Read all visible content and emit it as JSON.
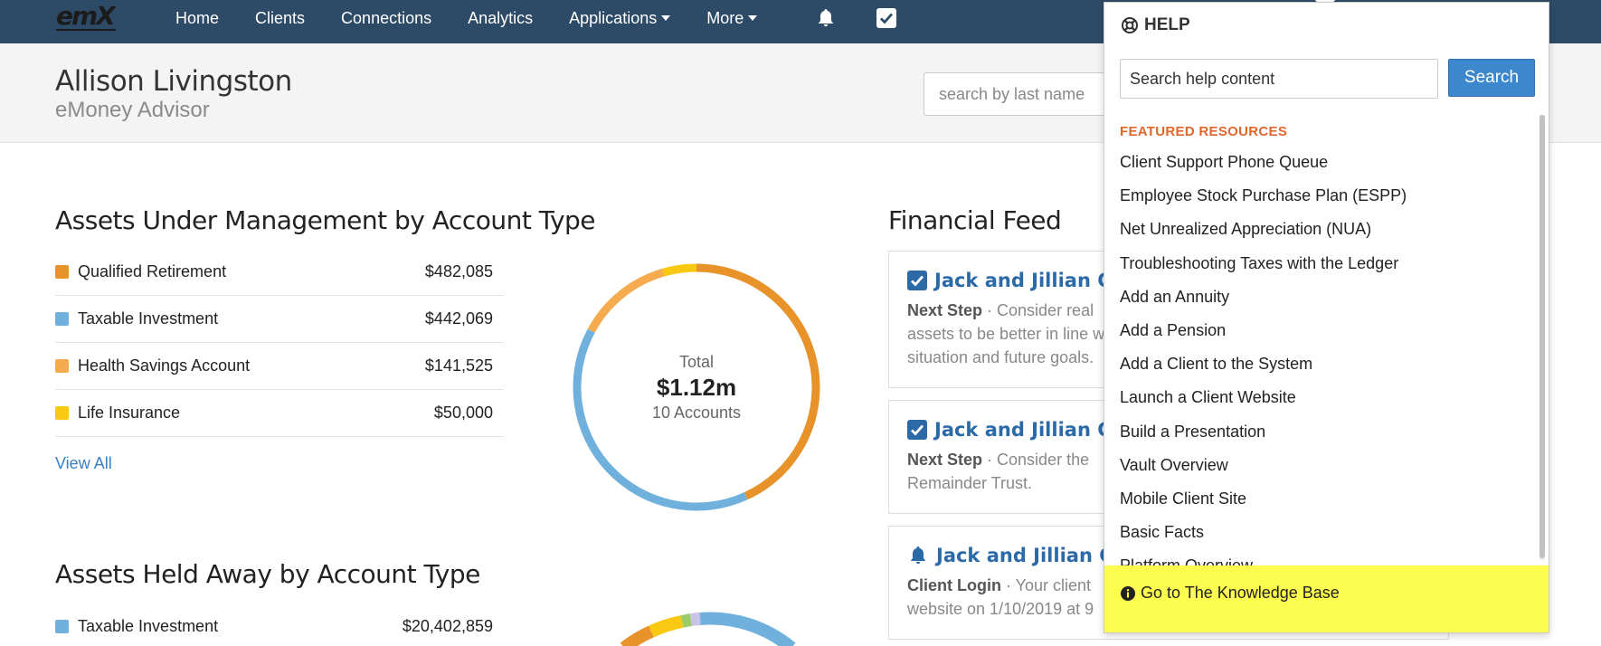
{
  "nav": {
    "logo_text": "emX",
    "links": [
      {
        "label": "Home"
      },
      {
        "label": "Clients"
      },
      {
        "label": "Connections"
      },
      {
        "label": "Analytics"
      },
      {
        "label": "Applications",
        "dropdown": true
      },
      {
        "label": "More",
        "dropdown": true
      }
    ],
    "icons": [
      "bell-icon",
      "checkbox-icon"
    ],
    "bg_color": "#2d4a66"
  },
  "header": {
    "user_name": "Allison Livingston",
    "company": "eMoney Advisor",
    "search_placeholder": "search by last name"
  },
  "aum": {
    "title": "Assets Under Management by Account Type",
    "rows": [
      {
        "name": "Qualified Retirement",
        "value": "$482,085",
        "color": "#e8922a"
      },
      {
        "name": "Taxable Investment",
        "value": "$442,069",
        "color": "#6fb0dc"
      },
      {
        "name": "Health Savings Account",
        "value": "$141,525",
        "color": "#f6ab4f"
      },
      {
        "name": "Life Insurance",
        "value": "$50,000",
        "color": "#f9c912"
      }
    ],
    "view_all": "View All",
    "donut": {
      "label": "Total",
      "total": "$1.12m",
      "accounts": "10 Accounts",
      "slices": [
        {
          "value": 482085,
          "color": "#e8922a"
        },
        {
          "value": 442069,
          "color": "#6fb0dc"
        },
        {
          "value": 141525,
          "color": "#f6ab4f"
        },
        {
          "value": 50000,
          "color": "#f9c912"
        }
      ]
    }
  },
  "held_away": {
    "title": "Assets Held Away by Account Type",
    "rows": [
      {
        "name": "Taxable Investment",
        "value": "$20,402,859",
        "color": "#6fb0dc"
      }
    ]
  },
  "feed": {
    "title": "Financial Feed",
    "cards": [
      {
        "icon": "checkbox-icon",
        "heading": "Jack and Jillian Clie",
        "label": "Next Step",
        "sep": " · ",
        "text": "Consider real",
        "text2": "assets to be better in line w",
        "text3": "situation and future goals."
      },
      {
        "icon": "checkbox-icon",
        "heading": "Jack and Jillian Clie",
        "label": "Next Step",
        "sep": " · ",
        "text": "Consider the",
        "text2": "Remainder Trust.",
        "text3": ""
      },
      {
        "icon": "bell-icon",
        "heading": "Jack and Jillian Clie",
        "label": "Client Login",
        "sep": " · ",
        "text": "Your client",
        "text2": "website on 1/10/2019 at 9",
        "text3": ""
      }
    ]
  },
  "help": {
    "title": "HELP",
    "search_placeholder": "Search help content",
    "search_button": "Search",
    "featured_label": "FEATURED RESOURCES",
    "resources": [
      "Client Support Phone Queue",
      "Employee Stock Purchase Plan (ESPP)",
      "Net Unrealized Appreciation (NUA)",
      "Troubleshooting Taxes with the Ledger",
      "Add an Annuity",
      "Add a Pension",
      "Add a Client to the System",
      "Launch a Client Website",
      "Build a Presentation",
      "Vault Overview",
      "Mobile Client Site",
      "Basic Facts",
      "Platform Overview"
    ],
    "knowledge_base": "Go to The Knowledge Base",
    "highlight_color": "#fdfd4f",
    "featured_color": "#e0662c",
    "button_color": "#3d87cc"
  }
}
